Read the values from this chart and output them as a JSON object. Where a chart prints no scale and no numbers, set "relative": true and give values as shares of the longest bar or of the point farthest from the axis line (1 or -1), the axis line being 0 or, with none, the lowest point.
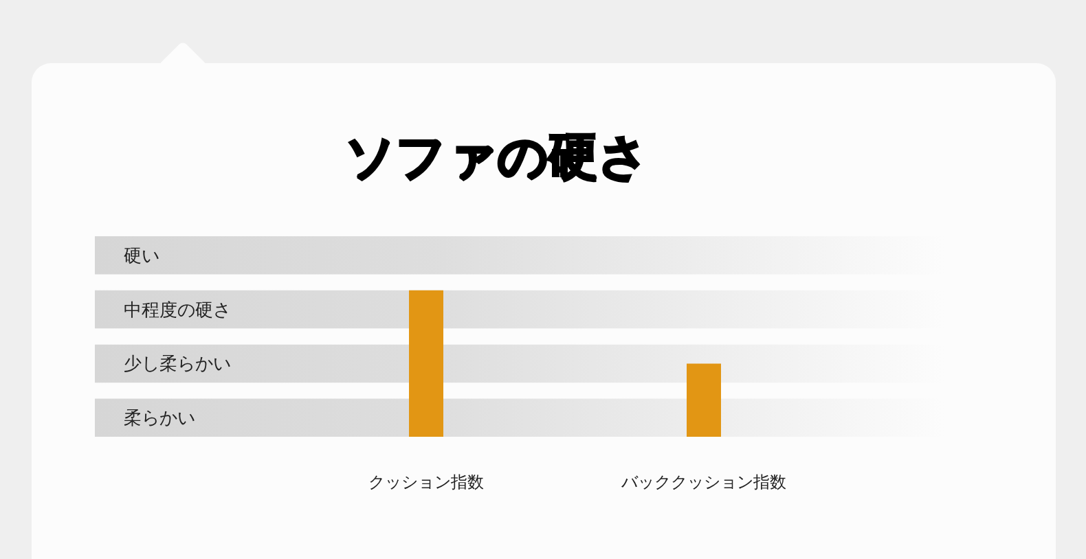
{
  "chart_data": {
    "type": "bar",
    "title": "ソファの硬さ",
    "categories": [
      "クッション指数",
      "バッククッション指数"
    ],
    "values": [
      1,
      0.5
    ],
    "color": "#e29614",
    "relative": true,
    "bands": [
      {
        "axis": "y",
        "from": 0,
        "to": 0.26,
        "label": "柔らかい",
        "color": "#d6d6d6"
      },
      {
        "axis": "y",
        "from": 0.37,
        "to": 0.63,
        "label": "少し柔らかい",
        "color": "#d6d6d6"
      },
      {
        "axis": "y",
        "from": 0.74,
        "to": 1,
        "label": "中程度の硬さ",
        "color": "#d6d6d6"
      },
      {
        "axis": "y",
        "from": 1.11,
        "to": 1.37,
        "label": "硬い",
        "color": "#d6d6d6"
      }
    ]
  }
}
